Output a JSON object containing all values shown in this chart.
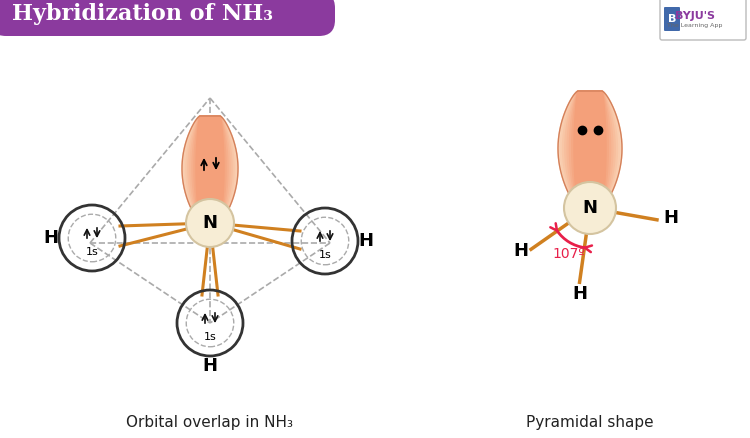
{
  "title": "Hybridization of NH₃",
  "title_bg": "#8B3A9E",
  "title_color": "#ffffff",
  "bg_color": "#ffffff",
  "lobe_color1": "#f4a07a",
  "lobe_color2": "#f9cbb0",
  "lobe_edge": "#d4805a",
  "N_color": "#f7edd5",
  "N_edge": "#d4c4a0",
  "bond_color": "#d08020",
  "caption_left": "Orbital overlap in NH₃",
  "caption_right": "Pyramidal shape",
  "angle_label": "107º",
  "angle_color": "#e8204a",
  "dash_color": "#aaaaaa",
  "circle_color": "#333333",
  "arrow_color": "#111111"
}
